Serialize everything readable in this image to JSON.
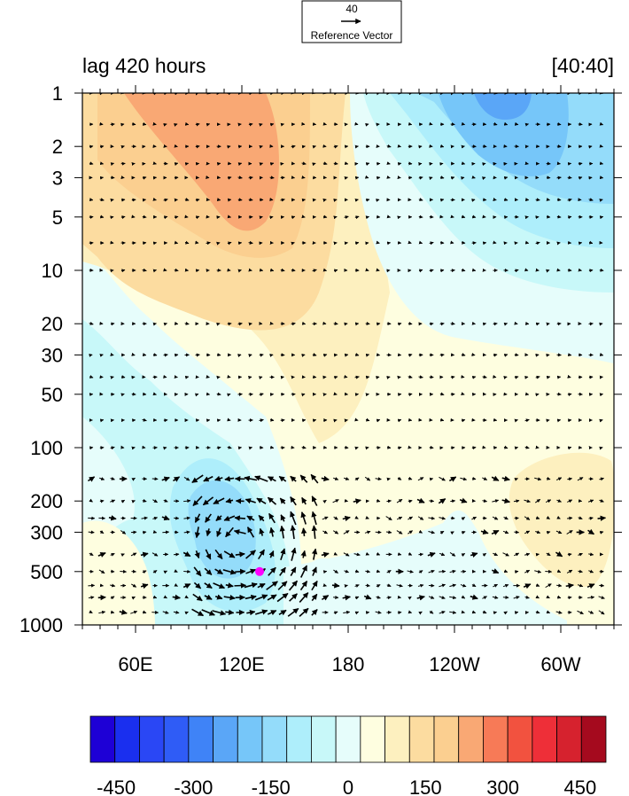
{
  "chart_data": {
    "type": "heatmap",
    "title_left": "lag 420 hours",
    "title_right": "[40:40]",
    "reference_vector": {
      "magnitude_label": "40",
      "label": "Reference Vector"
    },
    "x_axis": {
      "range_deg_east": [
        30,
        330
      ],
      "ticks": [
        {
          "lon": 60,
          "label": "60E"
        },
        {
          "lon": 120,
          "label": "120E"
        },
        {
          "lon": 180,
          "label": "180"
        },
        {
          "lon": 240,
          "label": "120W"
        },
        {
          "lon": 300,
          "label": "60W"
        }
      ]
    },
    "y_axis": {
      "scale": "log",
      "reversed": true,
      "range": [
        1,
        1000
      ],
      "ticks": [
        1,
        2,
        3,
        5,
        10,
        20,
        30,
        50,
        100,
        200,
        300,
        500,
        1000
      ]
    },
    "colorbar": {
      "levels": [
        -500,
        -450,
        -400,
        -350,
        -300,
        -250,
        -200,
        -150,
        -100,
        -50,
        0,
        50,
        100,
        150,
        200,
        250,
        300,
        350,
        400,
        450,
        500
      ],
      "labels": [
        "-450",
        "-300",
        "-150",
        "0",
        "150",
        "300",
        "450"
      ],
      "label_values": [
        -450,
        -300,
        -150,
        0,
        150,
        300,
        450
      ],
      "colors": [
        "#1e00d6",
        "#1a2fef",
        "#2a47f5",
        "#2f5cf6",
        "#3f83f7",
        "#5aa6f7",
        "#76c6f9",
        "#94dcfa",
        "#aeeefb",
        "#c8f8f9",
        "#e6fdfb",
        "#fefee0",
        "#fdf0bf",
        "#fcdca0",
        "#fbcf90",
        "#f9a874",
        "#f77a57",
        "#f2523f",
        "#ee2f38",
        "#d6222e",
        "#a50a1e"
      ]
    },
    "field_features": [
      {
        "type": "max",
        "lon": 115,
        "p": 4,
        "value": 250
      },
      {
        "type": "min",
        "lon": 275,
        "p": 1.2,
        "value": -200
      },
      {
        "type": "min",
        "lon": 115,
        "p": 250,
        "value": -150
      },
      {
        "type": "max",
        "lon": 305,
        "p": 250,
        "value": 100
      }
    ],
    "marker": {
      "lon": 130,
      "p": 500,
      "color": "#ff00ff"
    },
    "vectors": {
      "scale_reference": 40,
      "region_lon": [
        35,
        325
      ],
      "region_p": [
        1,
        900
      ]
    }
  }
}
